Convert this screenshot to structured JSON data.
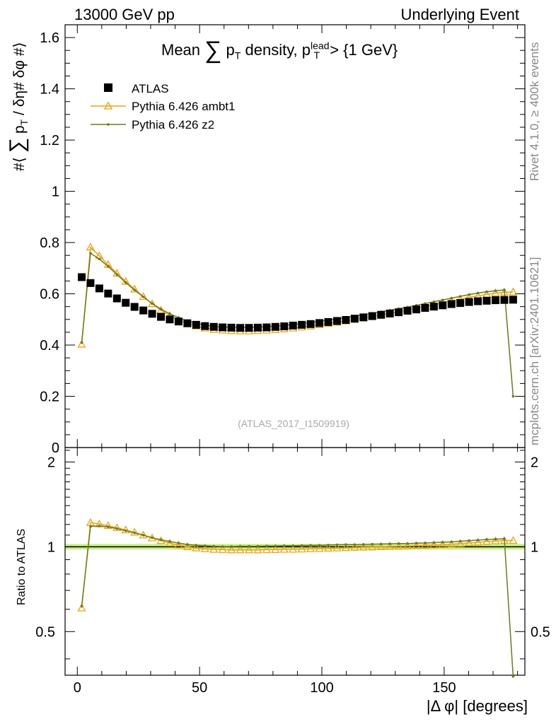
{
  "header": {
    "left": "13000 GeV pp",
    "right": "Underlying Event"
  },
  "side_labels": {
    "rivet": "Rivet 4.1.0, ≥ 400k events",
    "mcplots": "mcplots.cern.ch [arXiv:2401.10621]"
  },
  "chart_data": {
    "type": "scatter",
    "title": "Mean ∑ pT density, pT lead > {1 GeV}",
    "title_parts": {
      "mean": "Mean",
      "sum": "∑",
      "p": "p",
      "T": "T",
      "density": "density, p",
      "lead": "lead",
      "T2": "T",
      "gt": "> {1 GeV}"
    },
    "ylabel_parts": {
      "open": "#⟨",
      "sum": "∑",
      "p": "p",
      "T": "T",
      "rest": "/ δη# δφ #⟩"
    },
    "xlabel": "|Δ φ| [degrees]",
    "ratio_ylabel": "Ratio to ATLAS",
    "analysis_label": "(ATLAS_2017_I1509919)",
    "xlim": [
      -5,
      183
    ],
    "ylim": [
      0,
      1.65
    ],
    "ratio_ylim": [
      0.35,
      2.25
    ],
    "x_ticks": [
      0,
      50,
      100,
      150
    ],
    "y_ticks": [
      0,
      0.2,
      0.4,
      0.6,
      0.8,
      1,
      1.2,
      1.4,
      1.6
    ],
    "y_tick_labels": [
      "0",
      "0.2",
      "0.4",
      "0.6",
      "0.8",
      "1",
      "1.2",
      "1.4",
      "1.6"
    ],
    "ratio_ticks": [
      0.5,
      1,
      2
    ],
    "ratio_tick_labels": [
      "0.5",
      "1",
      "2"
    ],
    "x": [
      1.8,
      5.4,
      9.0,
      12.6,
      16.2,
      19.8,
      23.4,
      27.0,
      30.6,
      34.2,
      37.8,
      41.4,
      45.0,
      48.6,
      52.2,
      55.8,
      59.4,
      63.0,
      66.6,
      70.2,
      73.8,
      77.4,
      81.0,
      84.6,
      88.2,
      91.8,
      95.4,
      99.0,
      102.6,
      106.2,
      109.8,
      113.4,
      117.0,
      120.6,
      124.2,
      127.8,
      131.4,
      135.0,
      138.6,
      142.2,
      145.8,
      149.4,
      153.0,
      156.6,
      160.2,
      163.8,
      167.4,
      171.0,
      174.6,
      178.2
    ],
    "series": [
      {
        "name": "ATLAS",
        "color": "#000000",
        "marker": "square",
        "values": [
          0.665,
          0.642,
          0.621,
          0.601,
          0.582,
          0.565,
          0.549,
          0.535,
          0.522,
          0.51,
          0.5,
          0.492,
          0.485,
          0.479,
          0.474,
          0.471,
          0.469,
          0.468,
          0.467,
          0.467,
          0.468,
          0.469,
          0.471,
          0.473,
          0.476,
          0.479,
          0.482,
          0.486,
          0.49,
          0.494,
          0.498,
          0.503,
          0.508,
          0.513,
          0.518,
          0.523,
          0.528,
          0.534,
          0.539,
          0.545,
          0.55,
          0.555,
          0.56,
          0.564,
          0.568,
          0.571,
          0.573,
          0.575,
          0.576,
          0.577
        ]
      },
      {
        "name": "Pythia 6.426 ambt1",
        "color": "#e8a317",
        "marker": "triangle",
        "values": [
          0.403,
          0.782,
          0.748,
          0.714,
          0.68,
          0.648,
          0.618,
          0.589,
          0.561,
          0.536,
          0.515,
          0.499,
          0.485,
          0.474,
          0.466,
          0.461,
          0.458,
          0.456,
          0.455,
          0.455,
          0.456,
          0.458,
          0.46,
          0.463,
          0.466,
          0.47,
          0.474,
          0.479,
          0.484,
          0.489,
          0.494,
          0.5,
          0.506,
          0.512,
          0.518,
          0.524,
          0.53,
          0.537,
          0.544,
          0.551,
          0.558,
          0.565,
          0.572,
          0.579,
          0.586,
          0.592,
          0.598,
          0.603,
          0.606,
          0.607
        ]
      },
      {
        "name": "Pythia 6.426 z2",
        "color": "#6b7a1a",
        "marker": "dot",
        "values": [
          0.41,
          0.758,
          0.736,
          0.707,
          0.675,
          0.644,
          0.615,
          0.588,
          0.562,
          0.54,
          0.522,
          0.507,
          0.494,
          0.485,
          0.478,
          0.473,
          0.47,
          0.469,
          0.469,
          0.469,
          0.47,
          0.472,
          0.474,
          0.477,
          0.48,
          0.484,
          0.488,
          0.492,
          0.497,
          0.502,
          0.507,
          0.512,
          0.518,
          0.524,
          0.53,
          0.536,
          0.542,
          0.548,
          0.555,
          0.562,
          0.569,
          0.576,
          0.583,
          0.59,
          0.597,
          0.603,
          0.608,
          0.612,
          0.615,
          0.2
        ]
      }
    ],
    "legend_position": "top-left"
  }
}
